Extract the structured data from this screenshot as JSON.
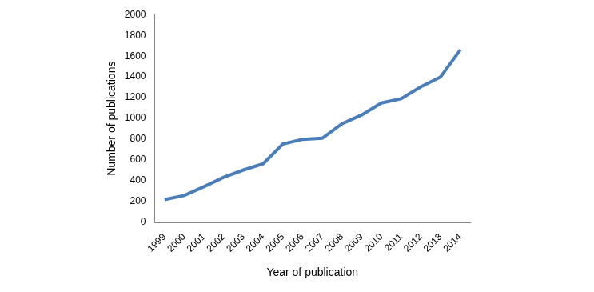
{
  "chart_data": {
    "type": "line",
    "x_label": "Year of publication",
    "y_label": "Number of publications",
    "categories": [
      "1999",
      "2000",
      "2001",
      "2002",
      "2003",
      "2004",
      "2005",
      "2006",
      "2007",
      "2008",
      "2009",
      "2010",
      "2011",
      "2012",
      "2013",
      "2014"
    ],
    "values": [
      220,
      260,
      345,
      435,
      505,
      565,
      755,
      800,
      810,
      950,
      1035,
      1150,
      1190,
      1305,
      1400,
      1660
    ],
    "color": "#4a7ebb",
    "ylim": [
      0,
      2000
    ],
    "yticks": [
      0,
      200,
      400,
      600,
      800,
      1000,
      1200,
      1400,
      1600,
      1800,
      2000
    ],
    "grid": false
  }
}
